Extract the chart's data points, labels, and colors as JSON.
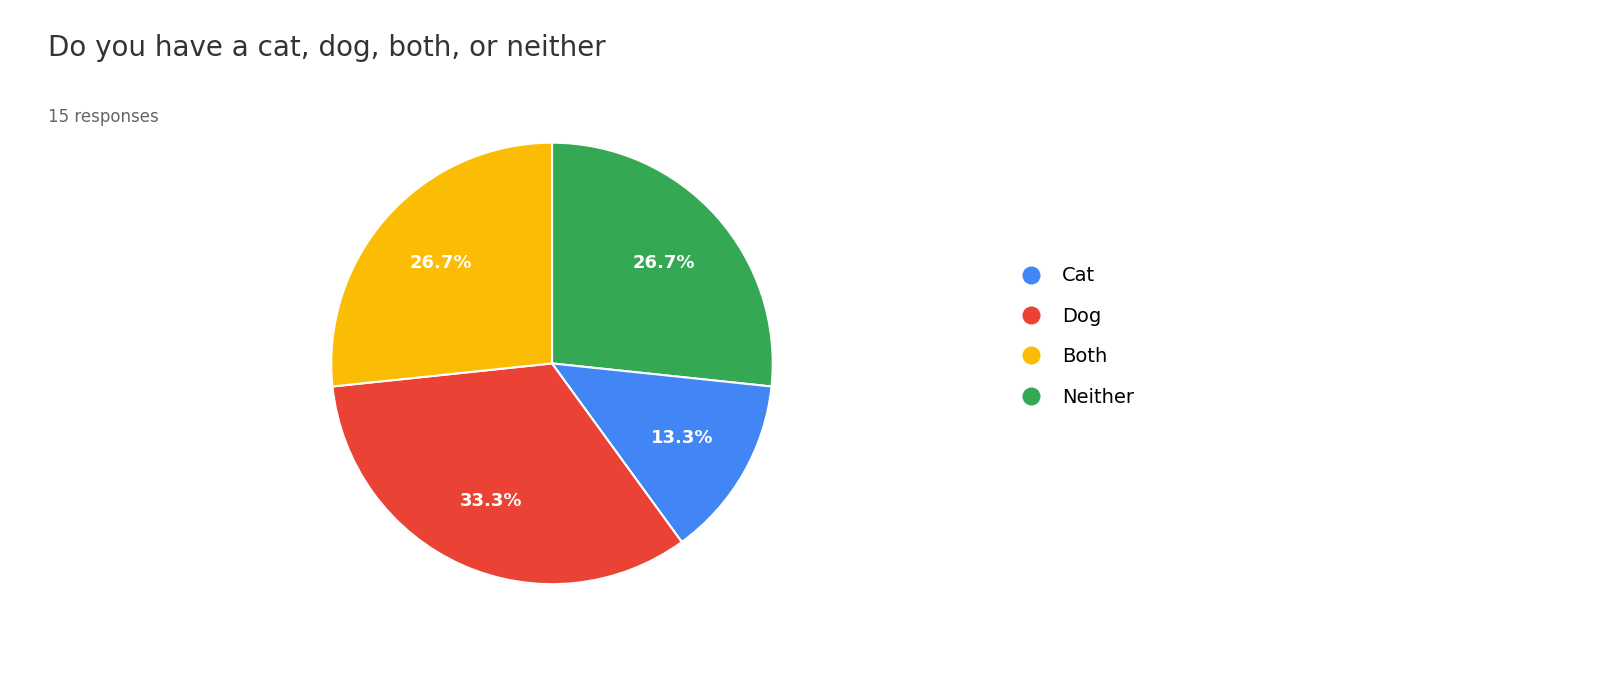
{
  "title": "Do you have a cat, dog, both, or neither",
  "subtitle": "15 responses",
  "labels": [
    "Cat",
    "Dog",
    "Both",
    "Neither"
  ],
  "values": [
    2,
    5,
    4,
    4
  ],
  "percentages": [
    "13.3%",
    "33.3%",
    "26.7%",
    "26.7%"
  ],
  "colors": [
    "#4285F4",
    "#EA4335",
    "#FBBC04",
    "#34A853"
  ],
  "title_fontsize": 20,
  "subtitle_fontsize": 12,
  "pct_fontsize": 13,
  "legend_fontsize": 14,
  "background_color": "#ffffff",
  "text_color": "#333333",
  "subtitle_color": "#666666"
}
